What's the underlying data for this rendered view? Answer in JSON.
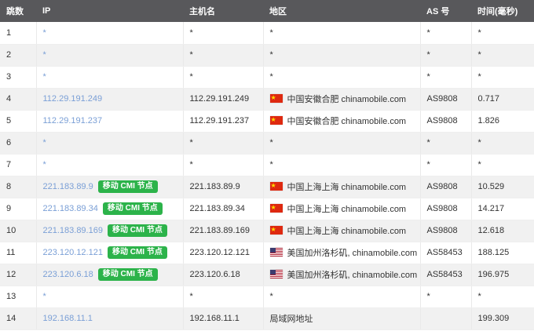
{
  "headers": {
    "hop": "跳数",
    "ip": "IP",
    "host": "主机名",
    "region": "地区",
    "as": "AS 号",
    "time": "时间(毫秒)"
  },
  "colors": {
    "header_bg": "#58585b",
    "row_stripe": "#f1f1f1",
    "link_blue": "#7a9fd6",
    "badge_green": "#2cb34a",
    "cn_flag_red": "#de2910",
    "us_flag_red": "#b22234",
    "us_flag_blue": "#3c3b6e"
  },
  "rows": [
    {
      "hop": "1",
      "ip": "*",
      "host": "*",
      "region": "*",
      "as": "*",
      "time": "*"
    },
    {
      "hop": "2",
      "ip": "*",
      "host": "*",
      "region": "*",
      "as": "*",
      "time": "*"
    },
    {
      "hop": "3",
      "ip": "*",
      "host": "*",
      "region": "*",
      "as": "*",
      "time": "*"
    },
    {
      "hop": "4",
      "ip": "112.29.191.249",
      "host": "112.29.191.249",
      "region": "中国安徽合肥 chinamobile.com",
      "as": "AS9808",
      "time": "0.717",
      "flag": "cn"
    },
    {
      "hop": "5",
      "ip": "112.29.191.237",
      "host": "112.29.191.237",
      "region": "中国安徽合肥 chinamobile.com",
      "as": "AS9808",
      "time": "1.826",
      "flag": "cn"
    },
    {
      "hop": "6",
      "ip": "*",
      "host": "*",
      "region": "*",
      "as": "*",
      "time": "*"
    },
    {
      "hop": "7",
      "ip": "*",
      "host": "*",
      "region": "*",
      "as": "*",
      "time": "*"
    },
    {
      "hop": "8",
      "ip": "221.183.89.9",
      "badge": "移动 CMI 节点",
      "host": "221.183.89.9",
      "region": "中国上海上海 chinamobile.com",
      "as": "AS9808",
      "time": "10.529",
      "flag": "cn"
    },
    {
      "hop": "9",
      "ip": "221.183.89.34",
      "badge": "移动 CMI 节点",
      "host": "221.183.89.34",
      "region": "中国上海上海 chinamobile.com",
      "as": "AS9808",
      "time": "14.217",
      "flag": "cn"
    },
    {
      "hop": "10",
      "ip": "221.183.89.169",
      "badge": "移动 CMI 节点",
      "host": "221.183.89.169",
      "region": "中国上海上海 chinamobile.com",
      "as": "AS9808",
      "time": "12.618",
      "flag": "cn"
    },
    {
      "hop": "11",
      "ip": "223.120.12.121",
      "badge": "移动 CMI 节点",
      "host": "223.120.12.121",
      "region": "美国加州洛杉矶, chinamobile.com",
      "as": "AS58453",
      "time": "188.125",
      "flag": "us"
    },
    {
      "hop": "12",
      "ip": "223.120.6.18",
      "badge": "移动 CMI 节点",
      "host": "223.120.6.18",
      "region": "美国加州洛杉矶, chinamobile.com",
      "as": "AS58453",
      "time": "196.975",
      "flag": "us"
    },
    {
      "hop": "13",
      "ip": "*",
      "host": "*",
      "region": "*",
      "as": "*",
      "time": "*"
    },
    {
      "hop": "14",
      "ip": "192.168.11.1",
      "host": "192.168.11.1",
      "region": "局域网地址",
      "as": "",
      "time": "199.309"
    }
  ]
}
